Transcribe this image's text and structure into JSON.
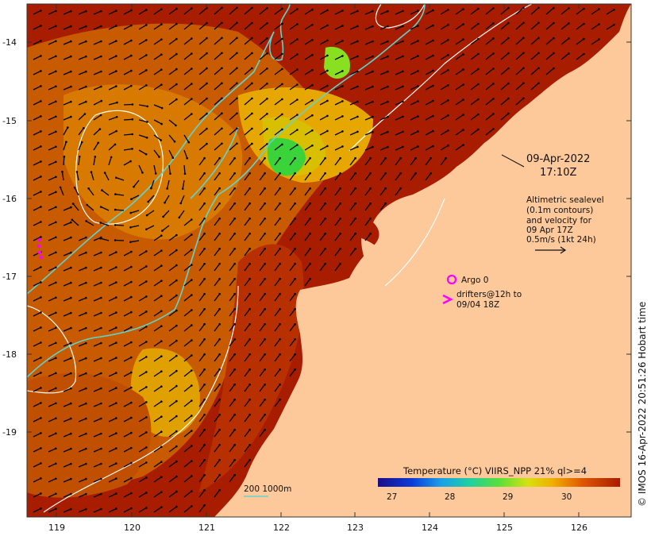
{
  "map": {
    "date": "09-Apr-2022",
    "time": "17:10Z",
    "legend_title": "Altimetric sealevel",
    "legend_lines": [
      "(0.1m contours)",
      "and velocity for",
      "09 Apr 17Z",
      "0.5m/s (1kt 24h)"
    ],
    "argo_label": "Argo 0",
    "drifters_line1": "drifters@12h to",
    "drifters_line2": "09/04 18Z",
    "colorbar_title": "Temperature (°C) VIIRS_NPP 21% ql>=4",
    "colorbar_ticks": [
      "27",
      "28",
      "29",
      "30"
    ],
    "depth_labels": "200  1000m",
    "credit": "© IMOS 16-Apr-2022 20:51:26 Hobart time",
    "lon_ticks": [
      "119",
      "120",
      "121",
      "122",
      "123",
      "124",
      "125",
      "126"
    ],
    "lat_ticks": [
      "-14",
      "-15",
      "-16",
      "-17",
      "-18",
      "-19"
    ],
    "colors": {
      "land": "#fdc89a",
      "warm": "#a81c00",
      "mid": "#c85a00",
      "cool": "#e8b000",
      "green": "#3ad43a",
      "isobath_200": "#5fd4d0",
      "contour": "#ffffff",
      "argo": "#ff00ff"
    }
  }
}
